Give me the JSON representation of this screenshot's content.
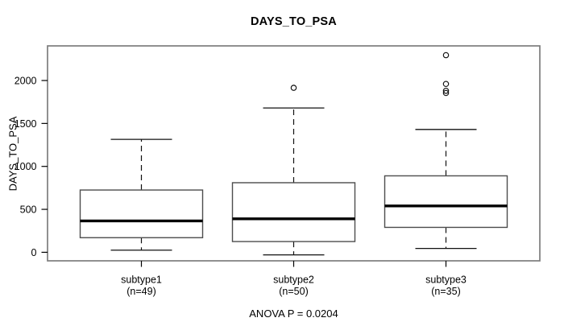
{
  "title": "DAYS_TO_PSA",
  "caption": "ANOVA P = 0.0204",
  "colors": {
    "background": "#ffffff",
    "frame": "#7d7d7d",
    "box_stroke": "#4d4d4d",
    "whisker": "#111111",
    "median": "#000000",
    "text": "#000000"
  },
  "chart_data": {
    "type": "boxplot",
    "title": "DAYS_TO_PSA",
    "ylabel": "DAYS_TO_PSA",
    "xlabel": "",
    "caption": "ANOVA P = 0.0204",
    "grid": false,
    "y_ticks": [
      0,
      500,
      1000,
      1500,
      2000
    ],
    "ylim": [
      -130,
      2400
    ],
    "categories": [
      "subtype1",
      "subtype2",
      "subtype3"
    ],
    "group_sublabels": [
      "(n=49)",
      "(n=50)",
      "(n=35)"
    ],
    "series": [
      {
        "name": "subtype1",
        "n": 49,
        "whisker_low": 25,
        "q1": 170,
        "median": 365,
        "q3": 725,
        "whisker_high": 1315,
        "outliers": []
      },
      {
        "name": "subtype2",
        "n": 50,
        "whisker_low": -30,
        "q1": 125,
        "median": 390,
        "q3": 810,
        "whisker_high": 1680,
        "outliers": [
          1915
        ]
      },
      {
        "name": "subtype3",
        "n": 35,
        "whisker_low": 45,
        "q1": 290,
        "median": 540,
        "q3": 890,
        "whisker_high": 1430,
        "outliers": [
          2295,
          1960,
          1880,
          1855
        ]
      }
    ]
  }
}
